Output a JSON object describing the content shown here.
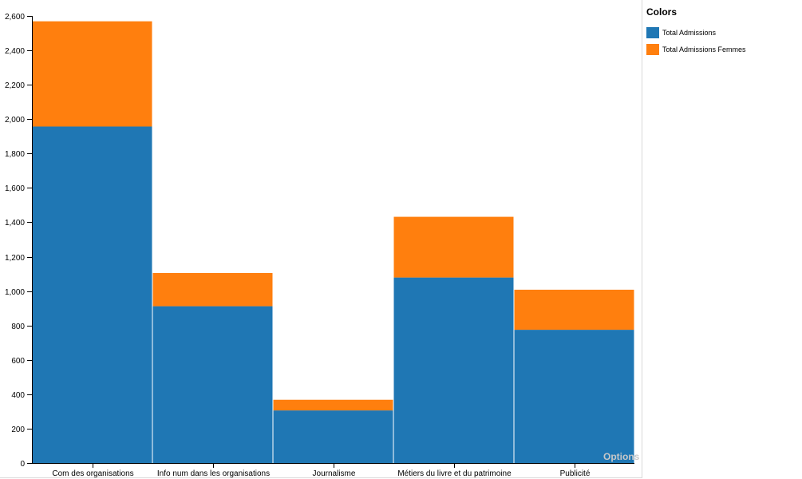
{
  "legend": {
    "title": "Colors",
    "items": [
      {
        "label": "Total Admissions",
        "color": "#1f77b4"
      },
      {
        "label": "Total Admissions Femmes",
        "color": "#ff7f0e"
      }
    ]
  },
  "options_label": "Options",
  "chart_data": {
    "type": "bar",
    "stacked": true,
    "categories": [
      "Com des organisations",
      "Info num dans les organisations",
      "Journalisme",
      "Métiers du livre et du patrimoine",
      "Publicité"
    ],
    "series": [
      {
        "name": "Total Admissions",
        "color": "#1f77b4",
        "values": [
          1957,
          912,
          306,
          1079,
          775
        ]
      },
      {
        "name": "Total Admissions Femmes",
        "color": "#ff7f0e",
        "values": [
          612,
          193,
          62,
          353,
          233
        ]
      }
    ],
    "ylim": [
      0,
      2600
    ],
    "yticks": [
      "0",
      "200",
      "400",
      "600",
      "800",
      "1,000",
      "1,200",
      "1,400",
      "1,600",
      "1,800",
      "2,000",
      "2,200",
      "2,400",
      "2,600"
    ],
    "grid": false,
    "legend_position": "right"
  }
}
